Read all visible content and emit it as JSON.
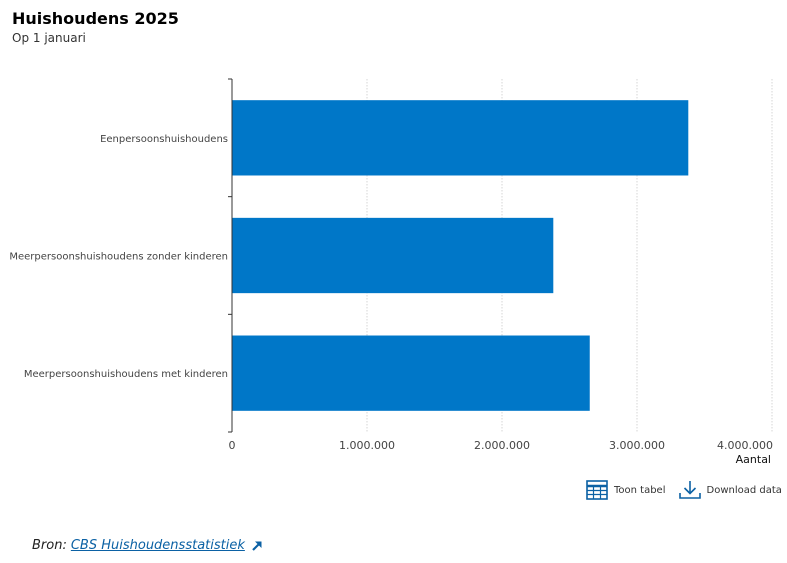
{
  "chart_data": {
    "type": "bar",
    "orientation": "horizontal",
    "title": "Huishoudens 2025",
    "subtitle": "Op 1 januari",
    "categories": [
      "Eenpersoonshuishoudens",
      "Meerpersoonshuishoudens zonder kinderen",
      "Meerpersoonshuishoudens met kinderen"
    ],
    "values": [
      3380000,
      2380000,
      2650000
    ],
    "xlim": [
      0,
      4000000
    ],
    "xticks": [
      0,
      1000000,
      2000000,
      3000000,
      4000000
    ],
    "xtick_labels": [
      "0",
      "1.000.000",
      "2.000.000",
      "3.000.000",
      "4.000.000"
    ],
    "xlabel": "Aantal",
    "ylabel": "",
    "grid": true,
    "bar_color": "#0077c8"
  },
  "actions": {
    "table_label": "Toon tabel",
    "download_label": "Download data"
  },
  "source": {
    "prefix": "Bron:",
    "link_text": "CBS Huishoudensstatistiek"
  },
  "colors": {
    "bar": "#0077c8",
    "accent": "#0b61a4",
    "grid": "#d6d6d6"
  }
}
